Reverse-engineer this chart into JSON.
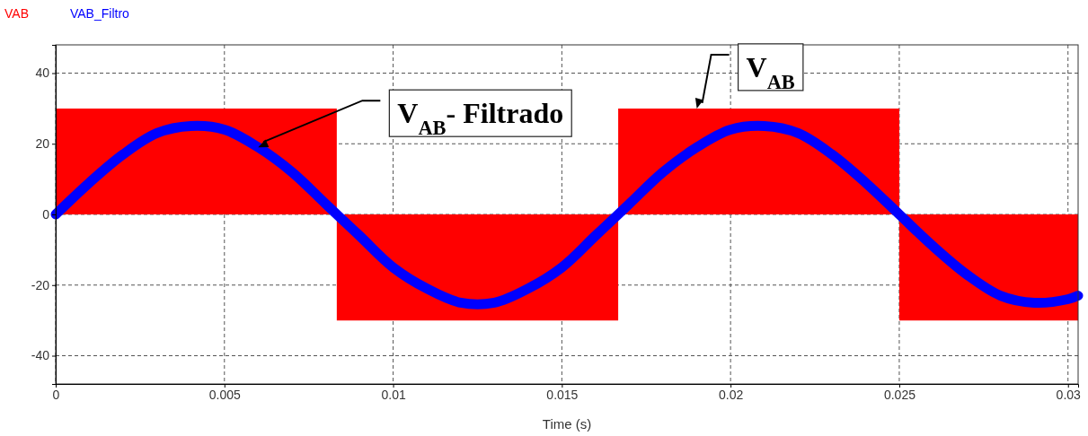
{
  "chart_data": {
    "type": "line",
    "xlabel": "Time (s)",
    "xlim": [
      0,
      0.0303
    ],
    "ylim": [
      -48,
      48
    ],
    "xticks": [
      0,
      0.005,
      0.01,
      0.015,
      0.02,
      0.025,
      0.03
    ],
    "yticks": [
      -40,
      -20,
      0,
      20,
      40
    ],
    "grid": true,
    "legend": "top left",
    "line_style": "solid",
    "series": [
      {
        "name": "VAB",
        "type": "area",
        "color": "#ff0000",
        "x": [
          0,
          0.00833,
          0.00833,
          0.01667,
          0.01667,
          0.025,
          0.025,
          0.0303
        ],
        "values": [
          30,
          30,
          -30,
          -30,
          30,
          30,
          -30,
          -30
        ]
      },
      {
        "name": "VAB_Filtro",
        "color": "#0000ff",
        "x": [
          0,
          0.001,
          0.002,
          0.003,
          0.004,
          0.005,
          0.006,
          0.007,
          0.008,
          0.009,
          0.01,
          0.011,
          0.012,
          0.013,
          0.014,
          0.015,
          0.016,
          0.017,
          0.018,
          0.019,
          0.02,
          0.021,
          0.022,
          0.023,
          0.024,
          0.025,
          0.026,
          0.027,
          0.028,
          0.029,
          0.03,
          0.0303
        ],
        "values": [
          0,
          9,
          17,
          23,
          25,
          24,
          19,
          12,
          3,
          -6,
          -15,
          -21,
          -25,
          -25,
          -21,
          -15,
          -6,
          3,
          12,
          19,
          24,
          25,
          23,
          17,
          9,
          0,
          -9,
          -17,
          -23,
          -25,
          -24,
          -23
        ]
      }
    ],
    "annotations": [
      {
        "text": "V$_{AB}$- Filtrado",
        "x": 0.006,
        "y": 19
      },
      {
        "text": "V$_{AB}$",
        "x": 0.019,
        "y": 30
      }
    ]
  }
}
